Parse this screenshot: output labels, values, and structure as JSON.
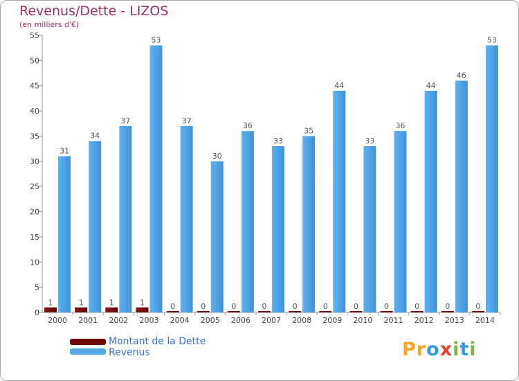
{
  "title": "Revenus/Dette - LIZOS",
  "subtitle": "(en milliers d'€)",
  "logo": {
    "letters": [
      "P",
      "r",
      "o",
      "x",
      "i",
      "t",
      "i"
    ],
    "colors": [
      "#f5a623",
      "#f5a623",
      "#3a9ad9",
      "#e8412b",
      "#7ab648",
      "#3a9ad9",
      "#7ab648"
    ]
  },
  "colors": {
    "debt": "#6e0a0a",
    "revenue": "#52a8e8",
    "revenue_dark": "#2f7fc2"
  },
  "chart_data": {
    "type": "bar",
    "categories": [
      "2000",
      "2001",
      "2002",
      "2003",
      "2004",
      "2005",
      "2006",
      "2007",
      "2008",
      "2009",
      "2010",
      "2011",
      "2012",
      "2013",
      "2014"
    ],
    "series": [
      {
        "name": "Montant de la Dette",
        "values": [
          1,
          1,
          1,
          1,
          0,
          0,
          0,
          0,
          0,
          0,
          0,
          0,
          0,
          0,
          0
        ]
      },
      {
        "name": "Revenus",
        "values": [
          31,
          34,
          37,
          53,
          37,
          30,
          36,
          33,
          35,
          44,
          33,
          36,
          44,
          46,
          53
        ]
      }
    ],
    "title": "Revenus/Dette - LIZOS",
    "ylabel": "(en milliers d'€)",
    "ylim": [
      0,
      55
    ],
    "yticks": [
      0,
      5,
      10,
      15,
      20,
      25,
      30,
      35,
      40,
      45,
      50,
      55
    ],
    "grid": false,
    "legend": "bottom-left"
  }
}
